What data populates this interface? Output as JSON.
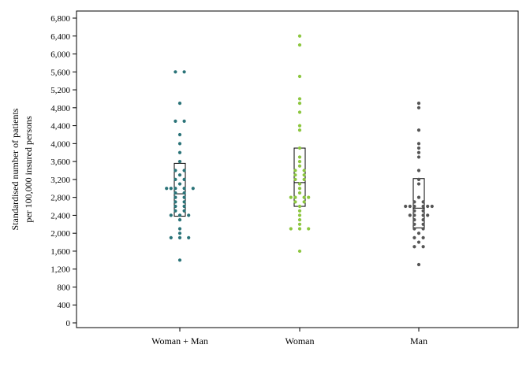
{
  "chart_data": {
    "type": "scatter",
    "ylabel_lines": [
      "Standardised number of patients",
      "per 100,000 insured persons"
    ],
    "xlabel": "",
    "ylim": [
      0,
      6800
    ],
    "yticks": [
      "0",
      "400",
      "800",
      "1,200",
      "1,600",
      "2,000",
      "2,400",
      "2,800",
      "3,200",
      "3,600",
      "4,000",
      "4,400",
      "4,800",
      "5,200",
      "5,600",
      "6,000",
      "6,400",
      "6,800"
    ],
    "grid": false,
    "categories": [
      "Woman + Man",
      "Woman",
      "Man"
    ],
    "series": [
      {
        "category": "Woman + Man",
        "color": "#2a7378",
        "box": {
          "q1": 2380,
          "median": 2880,
          "q3": 3560
        },
        "points": [
          {
            "x": -1,
            "y": 5600
          },
          {
            "x": 1,
            "y": 5600
          },
          {
            "x": 0,
            "y": 4900
          },
          {
            "x": -1,
            "y": 4500
          },
          {
            "x": 1,
            "y": 4500
          },
          {
            "x": 0,
            "y": 4200
          },
          {
            "x": 0,
            "y": 4000
          },
          {
            "x": 0,
            "y": 3800
          },
          {
            "x": 0,
            "y": 3600
          },
          {
            "x": -1,
            "y": 3400
          },
          {
            "x": 1,
            "y": 3400
          },
          {
            "x": 0,
            "y": 3300
          },
          {
            "x": -1,
            "y": 3200
          },
          {
            "x": 1,
            "y": 3200
          },
          {
            "x": 0,
            "y": 3100
          },
          {
            "x": -3,
            "y": 3000
          },
          {
            "x": -2,
            "y": 3000
          },
          {
            "x": -1,
            "y": 3000
          },
          {
            "x": 1,
            "y": 3000
          },
          {
            "x": 3,
            "y": 3000
          },
          {
            "x": -1,
            "y": 2900
          },
          {
            "x": 1,
            "y": 2900
          },
          {
            "x": -1,
            "y": 2800
          },
          {
            "x": 1,
            "y": 2800
          },
          {
            "x": -1,
            "y": 2700
          },
          {
            "x": 1,
            "y": 2700
          },
          {
            "x": -1,
            "y": 2600
          },
          {
            "x": 1,
            "y": 2600
          },
          {
            "x": -1,
            "y": 2500
          },
          {
            "x": 1,
            "y": 2500
          },
          {
            "x": -2,
            "y": 2400
          },
          {
            "x": 0,
            "y": 2400
          },
          {
            "x": 2,
            "y": 2400
          },
          {
            "x": 0,
            "y": 2300
          },
          {
            "x": 0,
            "y": 2100
          },
          {
            "x": 0,
            "y": 2000
          },
          {
            "x": -2,
            "y": 1900
          },
          {
            "x": 0,
            "y": 1900
          },
          {
            "x": 2,
            "y": 1900
          },
          {
            "x": 0,
            "y": 1400
          }
        ]
      },
      {
        "category": "Woman",
        "color": "#8cc63f",
        "box": {
          "q1": 2600,
          "median": 3130,
          "q3": 3900
        },
        "points": [
          {
            "x": 0,
            "y": 6400
          },
          {
            "x": 0,
            "y": 6200
          },
          {
            "x": 0,
            "y": 5500
          },
          {
            "x": 0,
            "y": 5000
          },
          {
            "x": 0,
            "y": 4900
          },
          {
            "x": 0,
            "y": 4700
          },
          {
            "x": 0,
            "y": 4400
          },
          {
            "x": 0,
            "y": 4300
          },
          {
            "x": 0,
            "y": 3900
          },
          {
            "x": 0,
            "y": 3700
          },
          {
            "x": 0,
            "y": 3600
          },
          {
            "x": 0,
            "y": 3500
          },
          {
            "x": -1,
            "y": 3400
          },
          {
            "x": 1,
            "y": 3400
          },
          {
            "x": -1,
            "y": 3300
          },
          {
            "x": 1,
            "y": 3300
          },
          {
            "x": -1,
            "y": 3200
          },
          {
            "x": 1,
            "y": 3200
          },
          {
            "x": 0,
            "y": 3100
          },
          {
            "x": 0,
            "y": 3000
          },
          {
            "x": 0,
            "y": 2900
          },
          {
            "x": -2,
            "y": 2800
          },
          {
            "x": -1,
            "y": 2800
          },
          {
            "x": 1,
            "y": 2800
          },
          {
            "x": 2,
            "y": 2800
          },
          {
            "x": -1,
            "y": 2700
          },
          {
            "x": 1,
            "y": 2700
          },
          {
            "x": 0,
            "y": 2600
          },
          {
            "x": 0,
            "y": 2500
          },
          {
            "x": 0,
            "y": 2400
          },
          {
            "x": 0,
            "y": 2300
          },
          {
            "x": 0,
            "y": 2200
          },
          {
            "x": -2,
            "y": 2100
          },
          {
            "x": 0,
            "y": 2100
          },
          {
            "x": 2,
            "y": 2100
          },
          {
            "x": 0,
            "y": 1600
          }
        ]
      },
      {
        "category": "Man",
        "color": "#555555",
        "box": {
          "q1": 2120,
          "median": 2560,
          "q3": 3220
        },
        "points": [
          {
            "x": 0,
            "y": 4900
          },
          {
            "x": 0,
            "y": 4800
          },
          {
            "x": 0,
            "y": 4300
          },
          {
            "x": 0,
            "y": 4000
          },
          {
            "x": 0,
            "y": 3900
          },
          {
            "x": 0,
            "y": 3800
          },
          {
            "x": 0,
            "y": 3700
          },
          {
            "x": 0,
            "y": 3400
          },
          {
            "x": 0,
            "y": 3200
          },
          {
            "x": 0,
            "y": 3100
          },
          {
            "x": 0,
            "y": 2800
          },
          {
            "x": -1,
            "y": 2700
          },
          {
            "x": 1,
            "y": 2700
          },
          {
            "x": -3,
            "y": 2600
          },
          {
            "x": -2,
            "y": 2600
          },
          {
            "x": -1,
            "y": 2600
          },
          {
            "x": 1,
            "y": 2600
          },
          {
            "x": 2,
            "y": 2600
          },
          {
            "x": 3,
            "y": 2600
          },
          {
            "x": -1,
            "y": 2500
          },
          {
            "x": 1,
            "y": 2500
          },
          {
            "x": -2,
            "y": 2400
          },
          {
            "x": -1,
            "y": 2400
          },
          {
            "x": 1,
            "y": 2400
          },
          {
            "x": 2,
            "y": 2400
          },
          {
            "x": -1,
            "y": 2300
          },
          {
            "x": 1,
            "y": 2300
          },
          {
            "x": -1,
            "y": 2200
          },
          {
            "x": 1,
            "y": 2200
          },
          {
            "x": -1,
            "y": 2100
          },
          {
            "x": 1,
            "y": 2100
          },
          {
            "x": 0,
            "y": 2000
          },
          {
            "x": -1,
            "y": 1900
          },
          {
            "x": 1,
            "y": 1900
          },
          {
            "x": 0,
            "y": 1800
          },
          {
            "x": -1,
            "y": 1700
          },
          {
            "x": 1,
            "y": 1700
          },
          {
            "x": 0,
            "y": 1300
          }
        ]
      }
    ]
  }
}
